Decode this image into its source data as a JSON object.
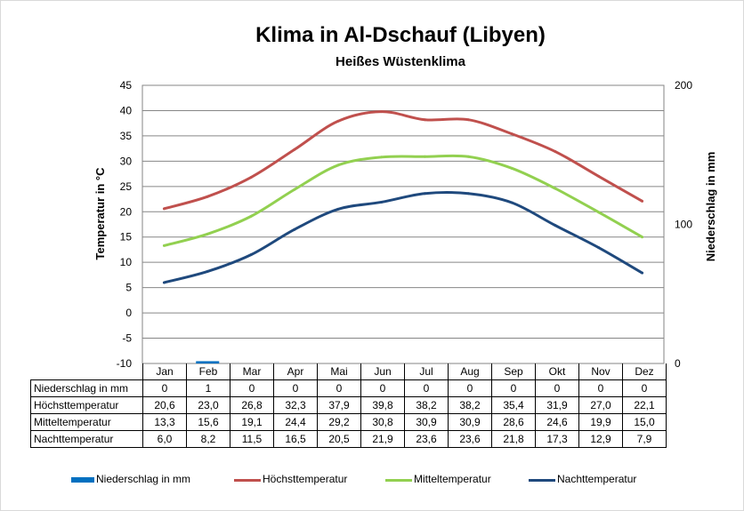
{
  "chart_data": {
    "type": "line",
    "title": "Klima in Al-Dschauf (Libyen)",
    "subtitle": "Heißes Wüstenklima",
    "ylabel": "Temperatur in °C",
    "y2label": "Niederschlag in mm",
    "ylim": [
      -10,
      45
    ],
    "y2lim": [
      0,
      200
    ],
    "yticks": [
      "45",
      "40",
      "35",
      "30",
      "25",
      "20",
      "15",
      "10",
      "5",
      "0",
      "-5",
      "-10"
    ],
    "y2ticks": [
      "200",
      "100",
      "0"
    ],
    "categories": [
      "Jan",
      "Feb",
      "Mar",
      "Apr",
      "Mai",
      "Jun",
      "Jul",
      "Aug",
      "Sep",
      "Okt",
      "Nov",
      "Dez"
    ],
    "grid": true,
    "legend_position": "bottom",
    "series": [
      {
        "name": "Niederschlag in mm",
        "type": "bar",
        "axis": "right",
        "color": "#0070c0",
        "values": [
          0,
          1,
          0,
          0,
          0,
          0,
          0,
          0,
          0,
          0,
          0,
          0
        ],
        "labels": [
          "0",
          "1",
          "0",
          "0",
          "0",
          "0",
          "0",
          "0",
          "0",
          "0",
          "0",
          "0"
        ]
      },
      {
        "name": "Höchsttemperatur",
        "type": "line",
        "axis": "left",
        "color": "#c0504d",
        "values": [
          20.6,
          23.0,
          26.8,
          32.3,
          37.9,
          39.8,
          38.2,
          38.2,
          35.4,
          31.9,
          27.0,
          22.1
        ],
        "labels": [
          "20,6",
          "23,0",
          "26,8",
          "32,3",
          "37,9",
          "39,8",
          "38,2",
          "38,2",
          "35,4",
          "31,9",
          "27,0",
          "22,1"
        ]
      },
      {
        "name": "Mitteltemperatur",
        "type": "line",
        "axis": "left",
        "color": "#92d050",
        "values": [
          13.3,
          15.6,
          19.1,
          24.4,
          29.2,
          30.8,
          30.9,
          30.9,
          28.6,
          24.6,
          19.9,
          15.0
        ],
        "labels": [
          "13,3",
          "15,6",
          "19,1",
          "24,4",
          "29,2",
          "30,8",
          "30,9",
          "30,9",
          "28,6",
          "24,6",
          "19,9",
          "15,0"
        ]
      },
      {
        "name": "Nachttemperatur",
        "type": "line",
        "axis": "left",
        "color": "#1f497d",
        "values": [
          6.0,
          8.2,
          11.5,
          16.5,
          20.5,
          21.9,
          23.6,
          23.6,
          21.8,
          17.3,
          12.9,
          7.9
        ],
        "labels": [
          "6,0",
          "8,2",
          "11,5",
          "16,5",
          "20,5",
          "21,9",
          "23,6",
          "23,6",
          "21,8",
          "17,3",
          "12,9",
          "7,9"
        ]
      }
    ]
  }
}
